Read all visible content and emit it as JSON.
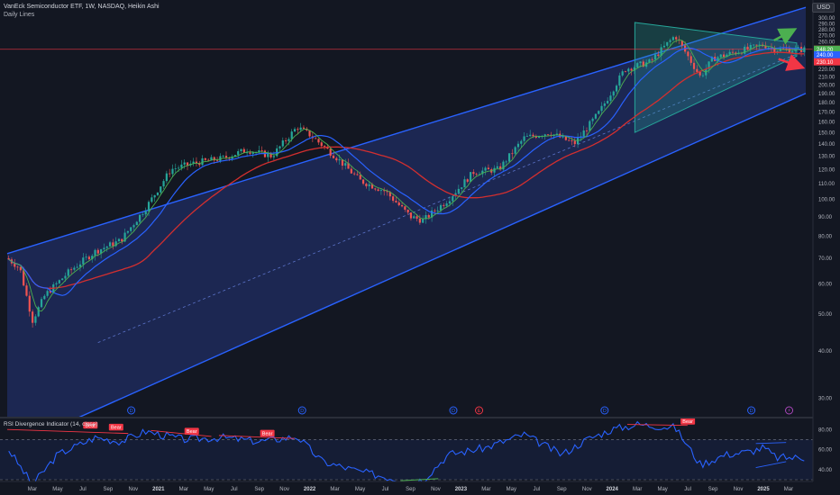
{
  "header": {
    "title": "VanEck Semiconductor ETF, 1W, NASDAQ, Heikin Ashi",
    "subtitle": "Daily Lines",
    "currency": "USD"
  },
  "rsi_panel": {
    "title": "RSI Divergence Indicator (14, close)",
    "levels": [
      70,
      30
    ],
    "tick_labels": [
      "80.00",
      "60.00",
      "40.00"
    ],
    "signal_labels": [
      "Bear",
      "Bear",
      "Bear",
      "Bear",
      "Bear",
      "Bear",
      "Bull"
    ]
  },
  "price_tags": [
    "248.28",
    "248.20",
    "240.00",
    "230.10"
  ],
  "event_markers": [
    "D",
    "D",
    "D",
    "E",
    "D",
    "D",
    "⚡"
  ],
  "colors": {
    "background": "#131722",
    "channel": "#2962ff",
    "channel_fill": "#1e2a5a",
    "triangle": "#26a69a",
    "up": "#26a69a",
    "down": "#ef5350",
    "ma_fast": "#4caf50",
    "ma_mid": "#2962ff",
    "ma_slow": "#d32f2f",
    "rsi_line": "#2962ff"
  },
  "chart_data": [
    {
      "type": "candlestick",
      "title": "VanEck Semiconductor ETF, 1W, NASDAQ, Heikin Ashi",
      "yscale": "log",
      "ylim": [
        28,
        310
      ],
      "y_ticks": [
        30,
        40,
        50,
        60,
        70,
        80,
        90,
        100,
        110,
        120,
        130,
        140,
        150,
        160,
        170,
        180,
        190,
        200,
        210,
        220,
        230,
        240,
        250,
        260,
        270,
        280,
        290,
        300
      ],
      "x_tick_labels": [
        "Mar",
        "May",
        "Jul",
        "Sep",
        "Nov",
        "2021",
        "Mar",
        "May",
        "Jul",
        "Sep",
        "Nov",
        "2022",
        "Mar",
        "May",
        "Jul",
        "Sep",
        "Nov",
        "2023",
        "Mar",
        "May",
        "Jul",
        "Sep",
        "Nov",
        "2024",
        "Mar",
        "May",
        "Jul",
        "Sep",
        "Nov",
        "2025",
        "Mar"
      ],
      "price_path": [
        [
          "2020-01",
          70
        ],
        [
          "2020-02",
          66
        ],
        [
          "2020-03",
          48
        ],
        [
          "2020-04",
          56
        ],
        [
          "2020-06",
          65
        ],
        [
          "2020-08",
          73
        ],
        [
          "2020-10",
          78
        ],
        [
          "2020-12",
          95
        ],
        [
          "2021-02",
          120
        ],
        [
          "2021-04",
          125
        ],
        [
          "2021-06",
          128
        ],
        [
          "2021-08",
          135
        ],
        [
          "2021-10",
          130
        ],
        [
          "2021-12",
          155
        ],
        [
          "2022-01",
          148
        ],
        [
          "2022-03",
          130
        ],
        [
          "2022-05",
          112
        ],
        [
          "2022-07",
          105
        ],
        [
          "2022-09",
          90
        ],
        [
          "2022-10",
          88
        ],
        [
          "2022-12",
          100
        ],
        [
          "2023-02",
          118
        ],
        [
          "2023-04",
          120
        ],
        [
          "2023-06",
          145
        ],
        [
          "2023-08",
          150
        ],
        [
          "2023-10",
          140
        ],
        [
          "2023-12",
          170
        ],
        [
          "2024-02",
          220
        ],
        [
          "2024-04",
          230
        ],
        [
          "2024-06",
          270
        ],
        [
          "2024-08",
          210
        ],
        [
          "2024-09",
          235
        ],
        [
          "2024-11",
          245
        ],
        [
          "2025-01",
          255
        ],
        [
          "2025-02",
          248
        ]
      ],
      "last_price": 248.28,
      "indicators": [
        "moving average (fast)",
        "moving average (mid)",
        "moving average (slow)"
      ],
      "annotations": [
        "ascending parallel channel",
        "symmetrical triangle",
        "up arrow",
        "down arrow",
        "horizontal level 248.28"
      ]
    },
    {
      "type": "line",
      "title": "RSI Divergence Indicator (14, close)",
      "ylim": [
        30,
        90
      ],
      "levels": [
        70,
        30
      ],
      "rsi_path": [
        [
          "2020-01",
          62
        ],
        [
          "2020-03",
          25
        ],
        [
          "2020-05",
          55
        ],
        [
          "2020-08",
          72
        ],
        [
          "2020-10",
          68
        ],
        [
          "2020-12",
          78
        ],
        [
          "2021-03",
          70
        ],
        [
          "2021-06",
          72
        ],
        [
          "2021-09",
          68
        ],
        [
          "2021-12",
          73
        ],
        [
          "2022-02",
          48
        ],
        [
          "2022-05",
          38
        ],
        [
          "2022-07",
          33
        ],
        [
          "2022-09",
          28
        ],
        [
          "2022-10",
          30
        ],
        [
          "2022-12",
          55
        ],
        [
          "2023-03",
          62
        ],
        [
          "2023-06",
          75
        ],
        [
          "2023-09",
          55
        ],
        [
          "2023-11",
          70
        ],
        [
          "2024-01",
          80
        ],
        [
          "2024-03",
          85
        ],
        [
          "2024-06",
          82
        ],
        [
          "2024-08",
          45
        ],
        [
          "2024-10",
          55
        ],
        [
          "2024-12",
          58
        ],
        [
          "2025-01",
          62
        ],
        [
          "2025-02",
          52
        ]
      ]
    }
  ]
}
